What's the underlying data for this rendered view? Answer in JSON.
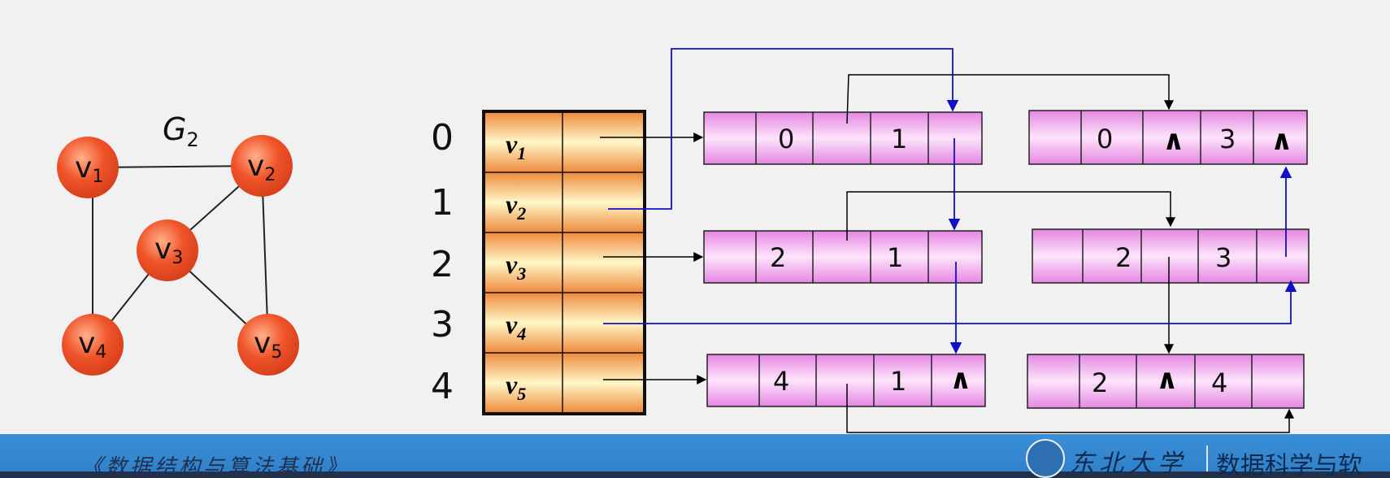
{
  "graph": {
    "name": "G",
    "name_sub": "2",
    "vertices": [
      {
        "letter": "v",
        "sub": "1"
      },
      {
        "letter": "v",
        "sub": "2"
      },
      {
        "letter": "v",
        "sub": "3"
      },
      {
        "letter": "v",
        "sub": "4"
      },
      {
        "letter": "v",
        "sub": "5"
      }
    ],
    "edges": [
      [
        "v1",
        "v2"
      ],
      [
        "v2",
        "v3"
      ],
      [
        "v1",
        "v4"
      ],
      [
        "v2",
        "v5"
      ],
      [
        "v3",
        "v4"
      ],
      [
        "v3",
        "v5"
      ]
    ]
  },
  "table": {
    "indices": [
      "0",
      "1",
      "2",
      "3",
      "4"
    ],
    "vertex_rows": [
      {
        "letter": "v",
        "sub": "1"
      },
      {
        "letter": "v",
        "sub": "2"
      },
      {
        "letter": "v",
        "sub": "3"
      },
      {
        "letter": "v",
        "sub": "4"
      },
      {
        "letter": "v",
        "sub": "5"
      }
    ]
  },
  "edge_nodes": [
    {
      "ivex": "0",
      "jvex": "1",
      "ilink": "",
      "jlink": ""
    },
    {
      "ivex": "0",
      "jvex": "3",
      "ilink": "∧",
      "jlink": "∧"
    },
    {
      "ivex": "2",
      "jvex": "1",
      "ilink": "",
      "jlink": ""
    },
    {
      "ivex": "2",
      "jvex": "3",
      "ilink": "",
      "jlink": ""
    },
    {
      "ivex": "4",
      "jvex": "1",
      "ilink": "",
      "jlink": "∧"
    },
    {
      "ivex": "2",
      "jvex": "4",
      "ilink": "∧",
      "jlink": ""
    }
  ],
  "footer": {
    "course_title": "《数据结构与算法基础》",
    "university": "东北大学",
    "department": "数据科学与软"
  },
  "colors": {
    "vertex_fill": "#f0542a",
    "edge_node_fill": "#f2a8ee",
    "table_fill": "#f0a060",
    "pointer_blue": "#1010c8",
    "footer_blue": "#3a8fd6"
  }
}
